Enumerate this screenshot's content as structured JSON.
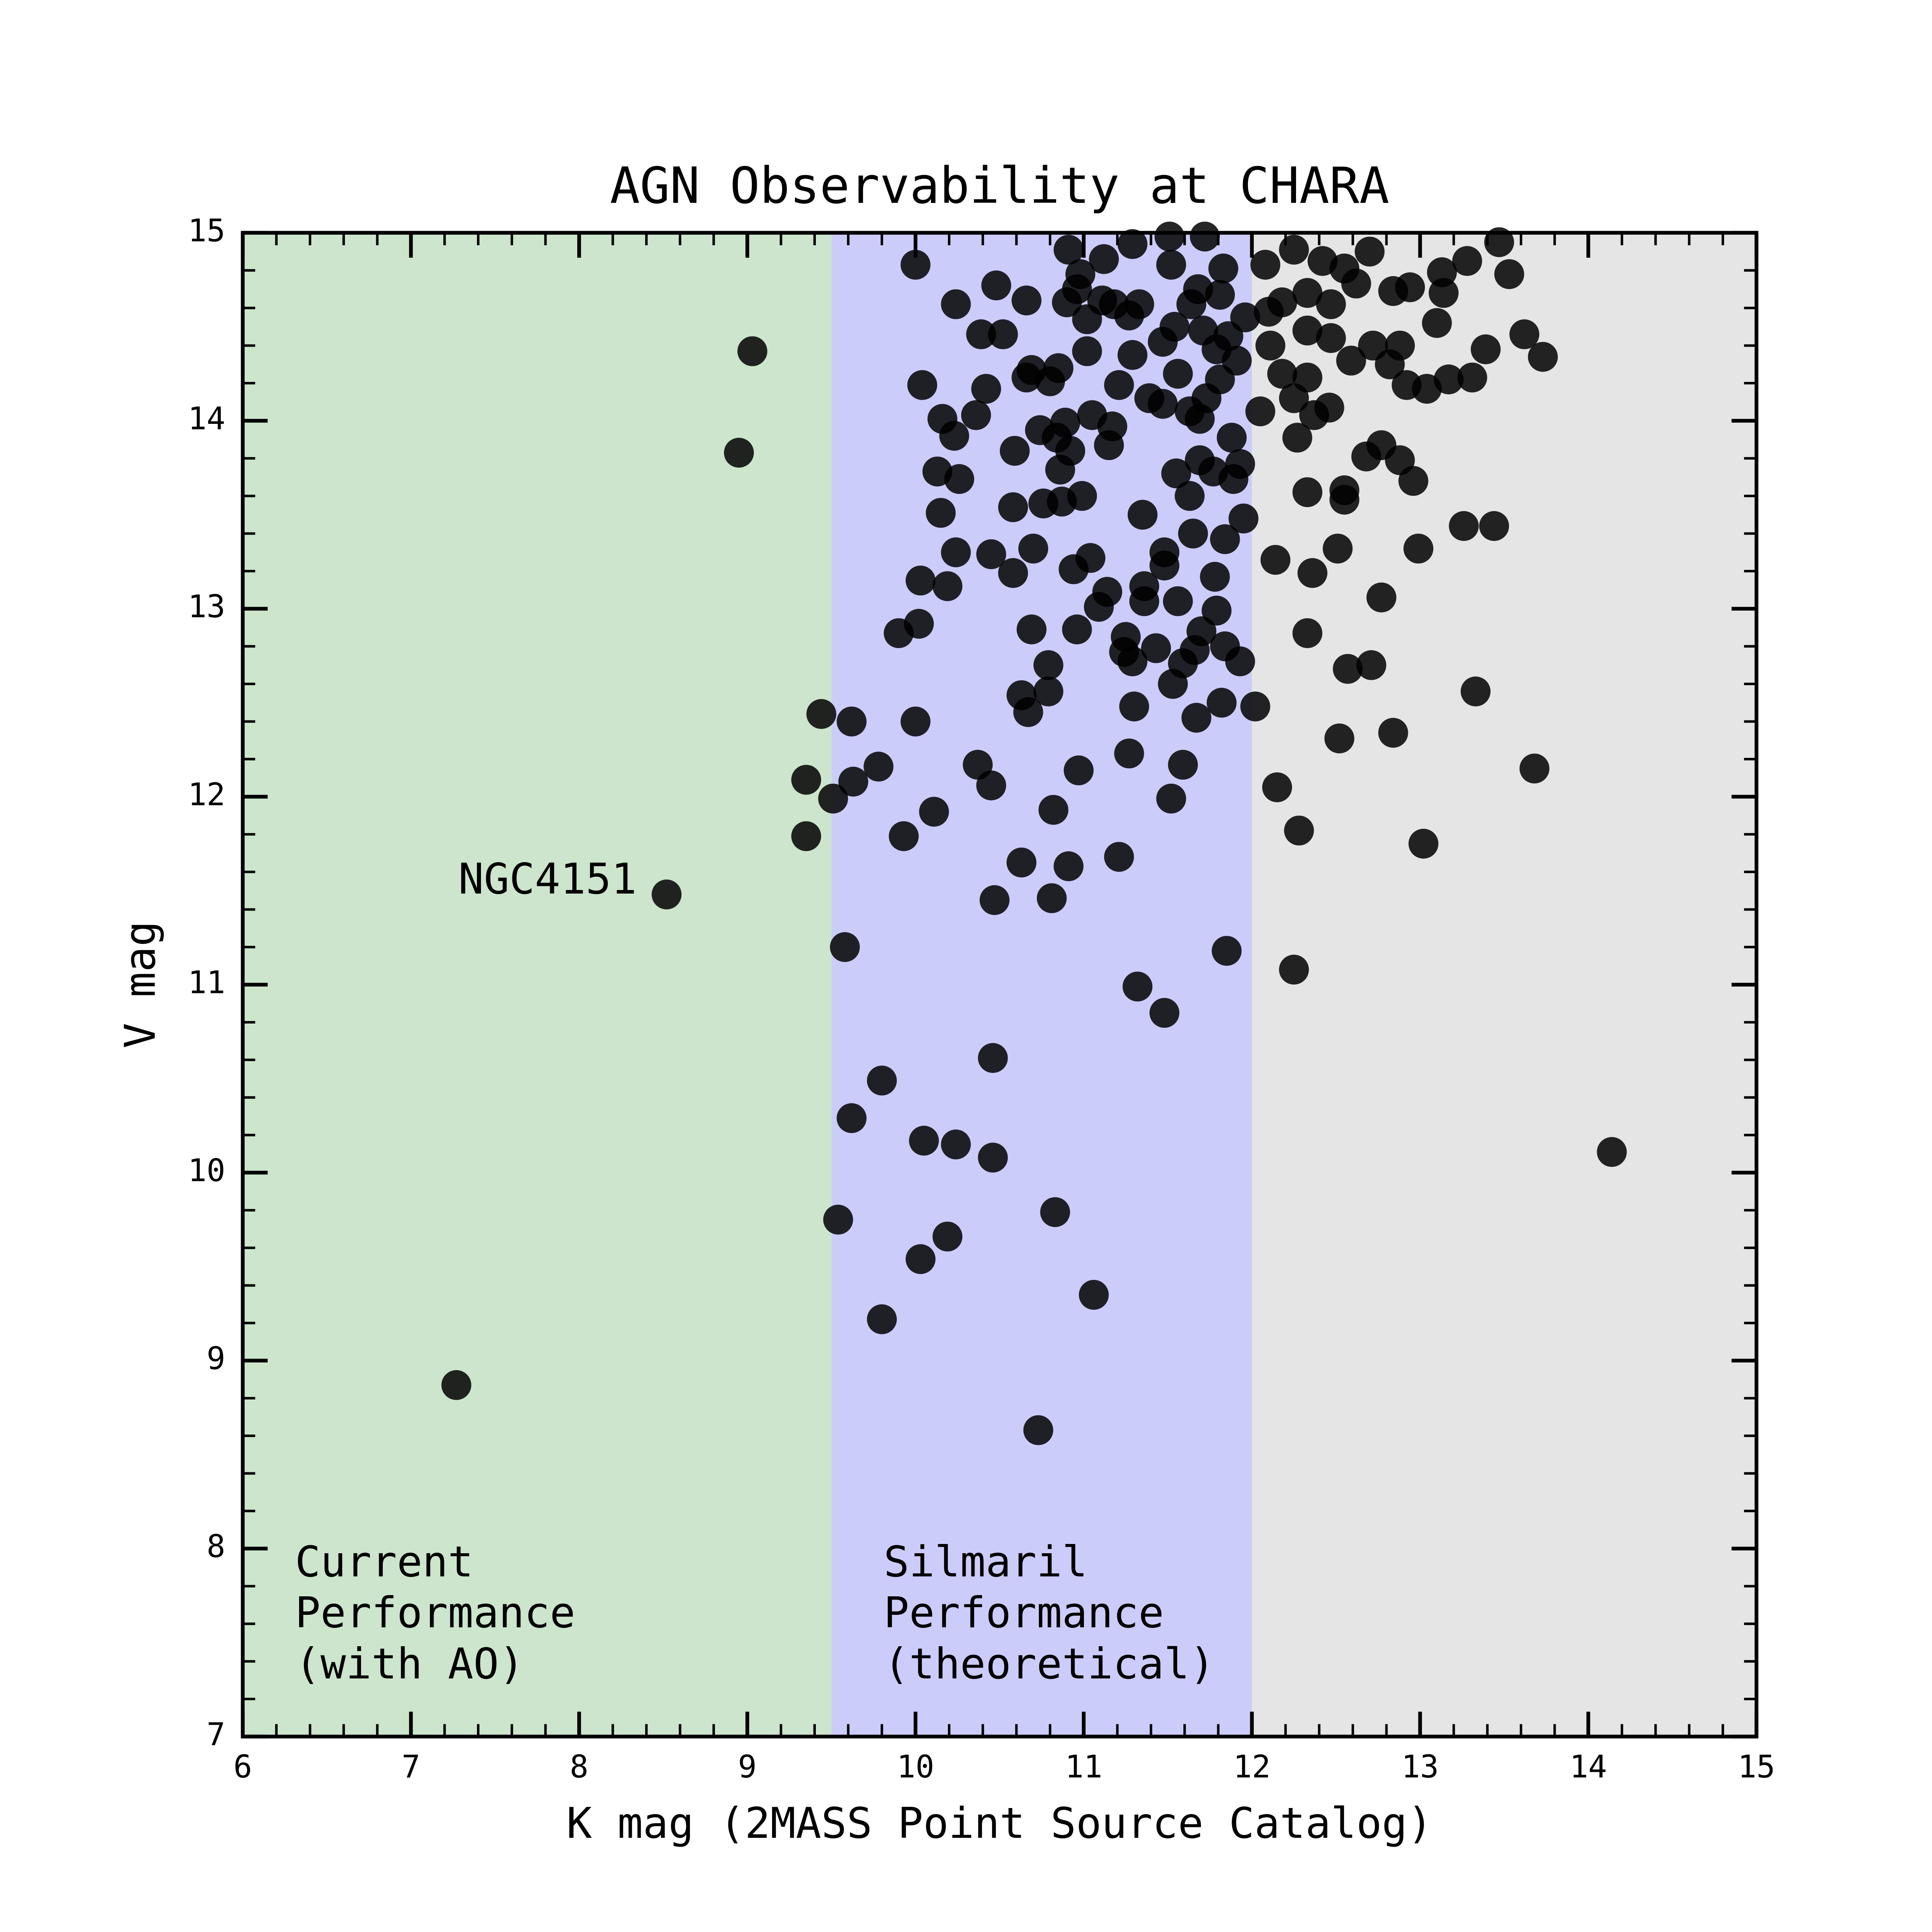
{
  "chart_data": {
    "type": "scatter",
    "title": "AGN Observability at CHARA",
    "x_label": "K mag (2MASS Point Source Catalog)",
    "y_label": "V mag",
    "xlim": [
      6,
      15
    ],
    "ylim": [
      7,
      15
    ],
    "xticks": [
      6,
      7,
      8,
      9,
      10,
      11,
      12,
      13,
      14,
      15
    ],
    "yticks": [
      7,
      8,
      9,
      10,
      11,
      12,
      13,
      14,
      15
    ],
    "minor_tick_step": 0.2,
    "color": "#000000",
    "marker_opacity": 0.85,
    "regions": [
      {
        "xlim": [
          6,
          9.5
        ],
        "color": "#cce5cc",
        "label": [
          "Current",
          "Performance",
          "(with AO)"
        ]
      },
      {
        "xlim": [
          9.5,
          12
        ],
        "color": "#ccccfa",
        "label": [
          "Silmaril",
          "Performance",
          "(theoretical)"
        ]
      },
      {
        "xlim": [
          12,
          15
        ],
        "color": "#e5e5e5"
      }
    ],
    "annotations": [
      {
        "text": "NGC4151",
        "x": 8.52,
        "y": 11.48
      }
    ],
    "x": [
      9.03,
      8.95,
      9.44,
      9.35,
      9.35,
      8.52,
      7.27,
      9.51,
      10.0,
      10.24,
      10.48,
      10.66,
      10.39,
      10.52,
      10.04,
      10.42,
      10.16,
      10.23,
      10.36,
      10.59,
      10.13,
      10.26,
      10.15,
      10.58,
      10.24,
      10.45,
      10.03,
      10.19,
      10.58,
      10.7,
      10.02,
      9.9,
      10.69,
      10.79,
      10.63,
      10.67,
      10.79,
      9.62,
      10.0,
      9.78,
      9.63,
      10.37,
      10.45,
      10.11,
      9.93,
      10.82,
      10.63,
      10.91,
      10.47,
      10.81,
      9.58,
      10.97,
      11.27,
      11.52,
      11.59,
      11.21,
      11.85,
      11.32,
      11.48,
      10.46,
      9.8,
      9.62,
      10.05,
      10.24,
      10.46,
      9.54,
      10.83,
      10.19,
      10.03,
      11.06,
      9.8,
      10.73,
      11.3,
      10.96,
      11.09,
      11.14,
      10.94,
      11.04,
      11.36,
      11.36,
      11.48,
      11.48,
      11.56,
      11.65,
      11.35,
      11.53,
      11.59,
      11.66,
      11.67,
      11.82,
      11.24,
      11.29,
      11.25,
      11.43,
      11.7,
      11.79,
      11.84,
      11.93,
      11.78,
      11.84,
      10.99,
      10.76,
      10.87,
      10.86,
      10.92,
      10.74,
      10.89,
      10.84,
      11.05,
      11.17,
      11.15,
      10.66,
      10.8,
      10.85,
      10.69,
      11.02,
      11.02,
      11.21,
      11.29,
      11.39,
      11.47,
      11.56,
      11.55,
      11.63,
      11.69,
      11.77,
      11.88,
      11.93,
      11.89,
      11.69,
      11.63,
      11.73,
      11.81,
      11.91,
      11.86,
      11.79,
      11.71,
      11.64,
      11.54,
      11.47,
      11.33,
      11.18,
      11.27,
      11.11,
      10.96,
      10.9,
      10.98,
      11.12,
      10.91,
      11.29,
      11.51,
      11.52,
      11.68,
      11.83,
      11.81,
      11.72,
      11.96,
      11.95,
      12.02,
      12.08,
      12.25,
      12.42,
      12.55,
      12.7,
      12.33,
      12.18,
      12.1,
      12.47,
      12.62,
      12.84,
      12.94,
      13.13,
      13.28,
      13.53,
      13.47,
      13.14,
      13.1,
      12.33,
      12.47,
      12.59,
      12.72,
      12.88,
      12.82,
      12.92,
      13.04,
      13.17,
      13.31,
      13.39,
      13.62,
      13.73,
      12.11,
      12.18,
      12.33,
      12.25,
      12.37,
      12.46,
      12.05,
      12.27,
      12.68,
      12.77,
      12.88,
      12.96,
      12.33,
      12.55,
      12.55,
      13.26,
      13.44,
      12.14,
      12.36,
      12.51,
      12.99,
      12.77,
      12.33,
      12.57,
      12.71,
      13.33,
      12.84,
      12.52,
      13.68,
      12.15,
      12.28,
      13.02,
      12.25,
      14.14
    ],
    "values": [
      14.37,
      13.83,
      12.44,
      12.09,
      11.79,
      11.48,
      8.87,
      11.99,
      14.83,
      14.62,
      14.72,
      14.64,
      14.46,
      14.46,
      14.19,
      14.17,
      14.01,
      13.92,
      14.03,
      13.84,
      13.73,
      13.69,
      13.51,
      13.54,
      13.3,
      13.29,
      13.15,
      13.12,
      13.19,
      13.32,
      12.92,
      12.87,
      12.89,
      12.7,
      12.54,
      12.45,
      12.56,
      12.4,
      12.4,
      12.16,
      12.08,
      12.17,
      12.06,
      11.92,
      11.79,
      11.93,
      11.65,
      11.63,
      11.45,
      11.46,
      11.2,
      12.14,
      12.23,
      11.99,
      12.17,
      11.68,
      11.18,
      10.99,
      10.85,
      10.61,
      10.49,
      10.29,
      10.17,
      10.15,
      10.08,
      9.75,
      9.79,
      9.66,
      9.54,
      9.35,
      9.22,
      8.63,
      12.48,
      12.89,
      13.01,
      13.09,
      13.21,
      13.27,
      13.12,
      13.04,
      13.3,
      13.23,
      13.04,
      13.4,
      13.5,
      12.6,
      12.71,
      12.78,
      12.42,
      12.5,
      12.77,
      12.72,
      12.85,
      12.79,
      12.88,
      12.99,
      12.8,
      12.72,
      13.17,
      13.37,
      13.6,
      13.56,
      13.57,
      13.74,
      13.84,
      13.95,
      13.99,
      13.91,
      14.03,
      13.97,
      13.87,
      14.23,
      14.21,
      14.28,
      14.27,
      14.37,
      14.54,
      14.19,
      14.35,
      14.12,
      14.09,
      14.25,
      13.72,
      13.6,
      13.79,
      13.73,
      13.91,
      13.77,
      13.69,
      14.01,
      14.05,
      14.12,
      14.22,
      14.32,
      14.45,
      14.38,
      14.48,
      14.62,
      14.5,
      14.42,
      14.62,
      14.62,
      14.56,
      14.64,
      14.7,
      14.63,
      14.78,
      14.86,
      14.91,
      14.94,
      14.98,
      14.83,
      14.7,
      14.81,
      14.67,
      14.98,
      14.55,
      13.48,
      12.48,
      14.83,
      14.91,
      14.85,
      14.81,
      14.9,
      14.68,
      14.63,
      14.58,
      14.62,
      14.73,
      14.69,
      14.71,
      14.79,
      14.85,
      14.78,
      14.95,
      14.68,
      14.52,
      14.48,
      14.44,
      14.32,
      14.4,
      14.4,
      14.3,
      14.19,
      14.17,
      14.22,
      14.23,
      14.38,
      14.46,
      14.34,
      14.4,
      14.25,
      14.23,
      14.12,
      14.03,
      14.07,
      14.05,
      13.91,
      13.81,
      13.87,
      13.79,
      13.68,
      13.62,
      13.63,
      13.58,
      13.44,
      13.44,
      13.26,
      13.19,
      13.32,
      13.32,
      13.06,
      12.87,
      12.68,
      12.7,
      12.56,
      12.34,
      12.31,
      12.15,
      12.05,
      11.82,
      11.75,
      11.08,
      10.11
    ]
  }
}
